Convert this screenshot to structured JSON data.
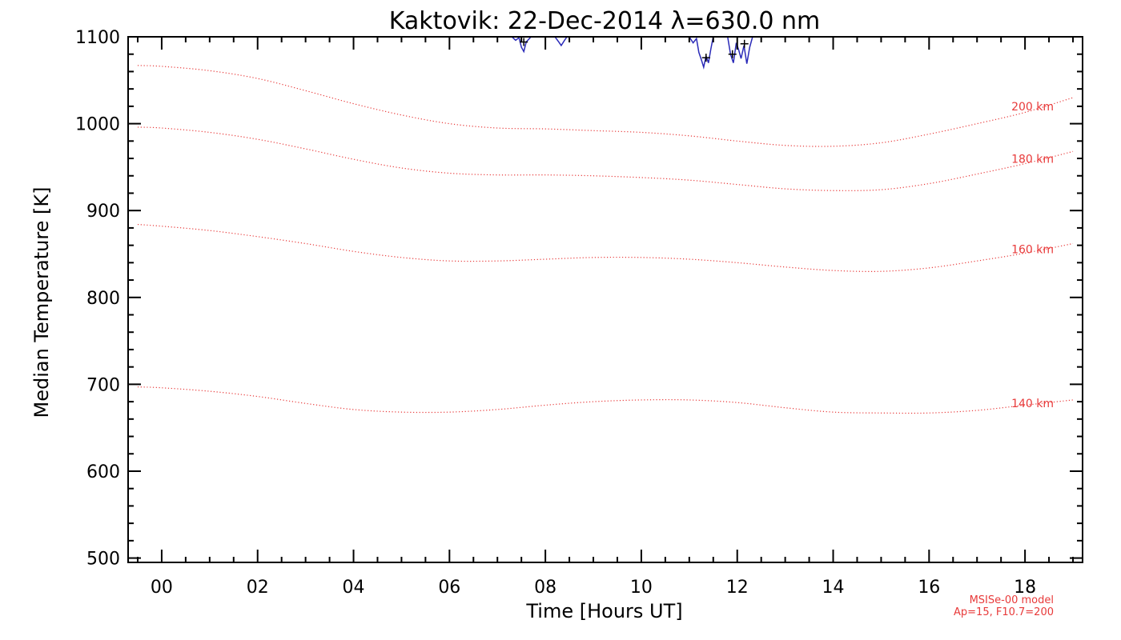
{
  "chart_data": {
    "type": "line",
    "title": "Kaktovik: 22-Dec-2014 λ=630.0 nm",
    "xlabel": "Time [Hours UT]",
    "ylabel": "Median Temperature [K]",
    "xlim": [
      -0.7,
      19.2
    ],
    "ylim": [
      495,
      1100
    ],
    "x_ticks": [
      0,
      2,
      4,
      6,
      8,
      10,
      12,
      14,
      16,
      18
    ],
    "x_tick_labels": [
      "00",
      "02",
      "04",
      "06",
      "08",
      "10",
      "12",
      "14",
      "16",
      "18"
    ],
    "y_ticks": [
      500,
      600,
      700,
      800,
      900,
      1000,
      1100
    ],
    "y_tick_labels": [
      "500",
      "600",
      "700",
      "800",
      "900",
      "1000",
      "1100"
    ],
    "grid": false,
    "model_series": [
      {
        "name": "200 km",
        "color": "#e83a3a",
        "x": [
          -0.5,
          0,
          1,
          2,
          3,
          4,
          5,
          6,
          7,
          8,
          9,
          10,
          11,
          12,
          13,
          14,
          15,
          16,
          17,
          18,
          19
        ],
        "y": [
          1067,
          1066,
          1061,
          1052,
          1038,
          1023,
          1010,
          1000,
          995,
          994,
          992,
          990,
          986,
          980,
          975,
          974,
          978,
          988,
          1000,
          1013,
          1030
        ]
      },
      {
        "name": "180 km",
        "color": "#e83a3a",
        "x": [
          -0.5,
          0,
          1,
          2,
          3,
          4,
          5,
          6,
          7,
          8,
          9,
          10,
          11,
          12,
          13,
          14,
          15,
          16,
          17,
          18,
          19
        ],
        "y": [
          996,
          995,
          990,
          982,
          971,
          959,
          949,
          943,
          941,
          941,
          940,
          938,
          935,
          930,
          925,
          923,
          924,
          931,
          942,
          954,
          968
        ]
      },
      {
        "name": "160 km",
        "color": "#e83a3a",
        "x": [
          -0.5,
          0,
          1,
          2,
          3,
          4,
          5,
          6,
          7,
          8,
          9,
          10,
          11,
          12,
          13,
          14,
          15,
          16,
          17,
          18,
          19
        ],
        "y": [
          884,
          882,
          877,
          870,
          862,
          853,
          846,
          842,
          842,
          844,
          846,
          846,
          844,
          840,
          835,
          831,
          830,
          834,
          842,
          851,
          862
        ]
      },
      {
        "name": "140 km",
        "color": "#e83a3a",
        "x": [
          -0.5,
          0,
          1,
          2,
          3,
          4,
          5,
          6,
          7,
          8,
          9,
          10,
          11,
          12,
          13,
          14,
          15,
          16,
          17,
          18,
          19
        ],
        "y": [
          697,
          696,
          692,
          686,
          678,
          671,
          668,
          668,
          671,
          676,
          680,
          682,
          682,
          679,
          673,
          668,
          667,
          667,
          670,
          676,
          682
        ]
      }
    ],
    "observed_series": {
      "color": "#2a2ab8",
      "marker_color": "#000000",
      "segments": [
        {
          "x": [
            7.3,
            7.38,
            7.45,
            7.5,
            7.55,
            7.6,
            7.65,
            7.7
          ],
          "y": [
            1100,
            1096,
            1099,
            1088,
            1083,
            1094,
            1097,
            1100
          ]
        },
        {
          "x": [
            8.2,
            8.28,
            8.33,
            8.4,
            8.45
          ],
          "y": [
            1100,
            1094,
            1090,
            1096,
            1100
          ]
        },
        {
          "x": [
            11.0,
            11.08,
            11.15,
            11.2,
            11.25,
            11.3,
            11.35,
            11.4,
            11.45,
            11.5
          ],
          "y": [
            1100,
            1093,
            1098,
            1082,
            1074,
            1065,
            1078,
            1070,
            1086,
            1100
          ]
        },
        {
          "x": [
            11.8,
            11.86,
            11.92,
            11.98,
            12.03,
            12.08,
            12.14,
            12.2,
            12.26,
            12.32
          ],
          "y": [
            1100,
            1080,
            1070,
            1093,
            1085,
            1075,
            1090,
            1069,
            1088,
            1100
          ]
        }
      ],
      "markers": {
        "x": [
          7.55,
          11.35,
          11.9,
          12.15
        ],
        "y": [
          1094,
          1076,
          1080,
          1092
        ]
      }
    },
    "annotations": [
      "MSISe-00 model",
      "Ap=15, F10.7=200"
    ]
  }
}
